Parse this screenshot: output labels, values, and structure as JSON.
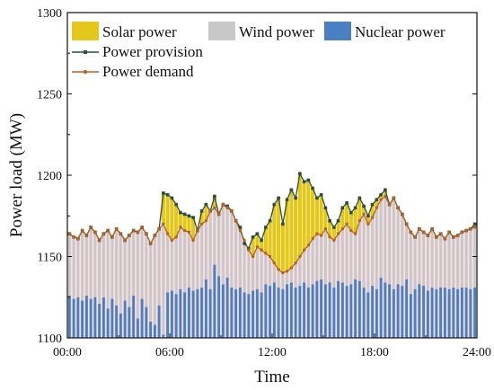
{
  "chart_data": {
    "type": "bar",
    "subtype": "stacked-bar-with-lines",
    "xlabel": "Time",
    "ylabel": "Power load (MW)",
    "ylim": [
      1100,
      1300
    ],
    "yticks": [
      1100,
      1150,
      1200,
      1250,
      1300
    ],
    "xlim": [
      0,
      24
    ],
    "xticks": [
      0,
      6,
      12,
      18,
      24
    ],
    "xtick_labels": [
      "00:00",
      "06:00",
      "12:00",
      "18:00",
      "24:00"
    ],
    "grid": false,
    "legend_position": "top",
    "interval_hours": 0.25,
    "colors": {
      "solar": "#e3c81a",
      "wind": "#c8c8c8",
      "nuclear": "#4a7fc1",
      "provision": "#2d4e3e",
      "demand": "#b8621f",
      "demand_fill": "#f6c4cf"
    },
    "legend": {
      "solar": "Solar power",
      "wind": "Wind power",
      "nuclear": "Nuclear power",
      "provision": "Power provision",
      "demand": "Power demand"
    },
    "series": [
      {
        "name": "Nuclear power",
        "key": "nuclear",
        "values": [
          1126,
          1124,
          1125,
          1123,
          1126,
          1124,
          1125,
          1121,
          1125,
          1118,
          1124,
          1120,
          1115,
          1123,
          1119,
          1126,
          1112,
          1124,
          1119,
          1110,
          1108,
          1120,
          1102,
          1128,
          1129,
          1127,
          1130,
          1128,
          1131,
          1129,
          1130,
          1131,
          1136,
          1130,
          1145,
          1138,
          1133,
          1137,
          1131,
          1130,
          1131,
          1128,
          1127,
          1129,
          1130,
          1128,
          1133,
          1132,
          1134,
          1131,
          1130,
          1133,
          1134,
          1131,
          1132,
          1134,
          1131,
          1133,
          1135,
          1136,
          1133,
          1134,
          1131,
          1135,
          1134,
          1132,
          1133,
          1136,
          1135,
          1131,
          1128,
          1132,
          1130,
          1137,
          1134,
          1133,
          1130,
          1133,
          1132,
          1136,
          1127,
          1130,
          1133,
          1132,
          1129,
          1131,
          1130,
          1131,
          1131,
          1130,
          1131,
          1130,
          1131,
          1131,
          1130,
          1131
        ]
      },
      {
        "name": "Power demand",
        "key": "demand",
        "values": [
          1164,
          1162,
          1161,
          1166,
          1163,
          1168,
          1165,
          1160,
          1164,
          1166,
          1162,
          1167,
          1164,
          1160,
          1163,
          1166,
          1165,
          1168,
          1164,
          1158,
          1163,
          1167,
          1170,
          1164,
          1160,
          1162,
          1168,
          1166,
          1165,
          1160,
          1166,
          1170,
          1172,
          1178,
          1180,
          1176,
          1182,
          1180,
          1178,
          1172,
          1166,
          1160,
          1154,
          1150,
          1156,
          1154,
          1152,
          1150,
          1146,
          1142,
          1140,
          1141,
          1143,
          1146,
          1150,
          1154,
          1157,
          1161,
          1164,
          1163,
          1167,
          1162,
          1160,
          1164,
          1167,
          1170,
          1166,
          1164,
          1172,
          1176,
          1170,
          1174,
          1180,
          1185,
          1187,
          1182,
          1186,
          1180,
          1176,
          1170,
          1165,
          1162,
          1167,
          1165,
          1163,
          1167,
          1162,
          1164,
          1161,
          1165,
          1162,
          1163,
          1165,
          1166,
          1167,
          1168
        ]
      },
      {
        "name": "Power provision",
        "key": "provision",
        "values": [
          1164,
          1162,
          1161,
          1166,
          1163,
          1168,
          1165,
          1160,
          1164,
          1166,
          1162,
          1167,
          1164,
          1160,
          1163,
          1166,
          1165,
          1168,
          1164,
          1158,
          1163,
          1167,
          1189,
          1188,
          1186,
          1182,
          1177,
          1176,
          1175,
          1174,
          1166,
          1178,
          1182,
          1178,
          1187,
          1176,
          1182,
          1181,
          1178,
          1172,
          1168,
          1158,
          1155,
          1162,
          1164,
          1160,
          1168,
          1172,
          1182,
          1186,
          1170,
          1185,
          1191,
          1186,
          1201,
          1196,
          1197,
          1192,
          1186,
          1188,
          1180,
          1172,
          1168,
          1172,
          1180,
          1183,
          1177,
          1180,
          1186,
          1181,
          1175,
          1182,
          1185,
          1188,
          1191,
          1182,
          1186,
          1180,
          1176,
          1170,
          1165,
          1162,
          1167,
          1165,
          1163,
          1167,
          1162,
          1164,
          1161,
          1165,
          1162,
          1163,
          1165,
          1166,
          1167,
          1170
        ]
      }
    ]
  }
}
